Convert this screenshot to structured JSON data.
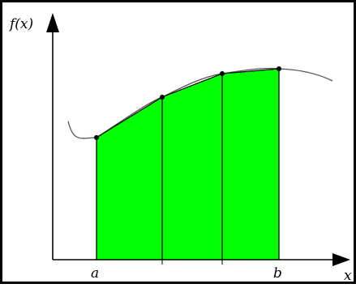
{
  "figure": {
    "y_axis_label": "f(x)",
    "x_axis_label": "x",
    "lower_limit_label": "a",
    "upper_limit_label": "b"
  },
  "colors": {
    "fill": "#00ff00",
    "curve": "#555555",
    "axes": "#000000",
    "border": "#000000"
  }
}
